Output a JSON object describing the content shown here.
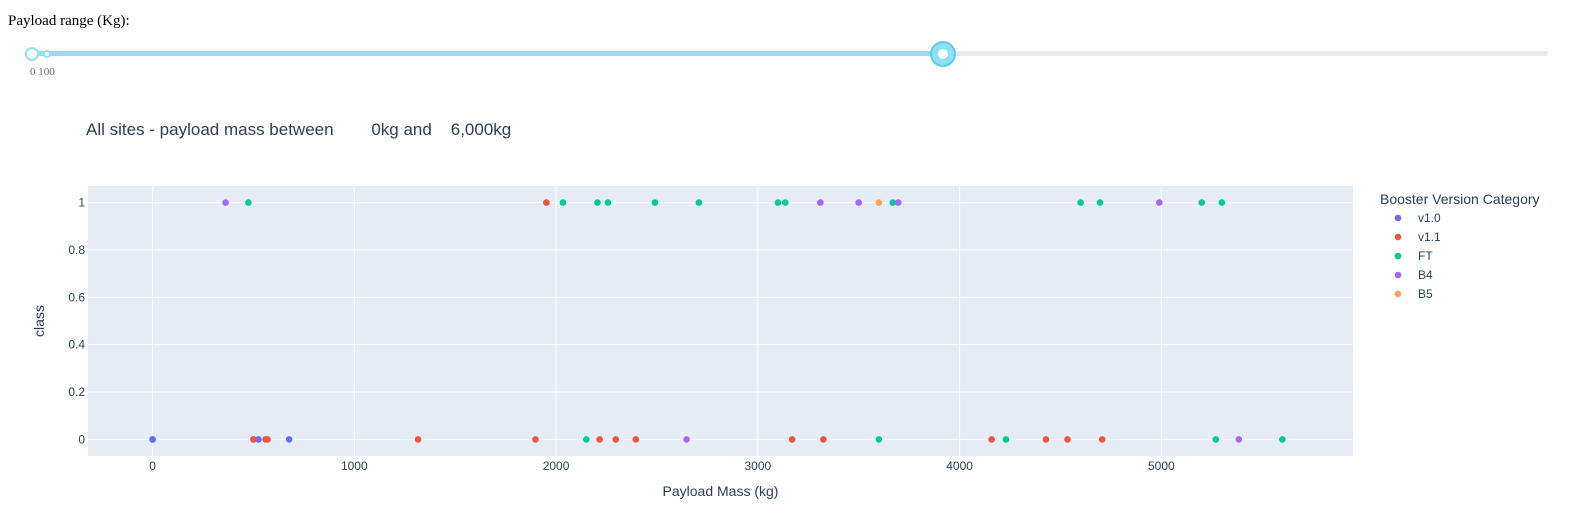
{
  "slider": {
    "label": "Payload range (Kg):",
    "marks_text": "0 100",
    "min": 0,
    "max": 10000,
    "value_low": 0,
    "value_high": 6000
  },
  "title": "All sites - payload mass between        0kg and    6,000kg",
  "chart_data": {
    "type": "scatter",
    "xlabel": "Payload Mass (kg)",
    "ylabel": "class",
    "xlim": [
      -320,
      5950
    ],
    "ylim": [
      -0.07,
      1.07
    ],
    "xticks": [
      0,
      1000,
      2000,
      3000,
      4000,
      5000
    ],
    "yticks": [
      0,
      0.2,
      0.4,
      0.6,
      0.8,
      1
    ],
    "ytick_labels": [
      "0",
      "0.2",
      "0.4",
      "0.6",
      "0.8",
      "1"
    ],
    "grid": true,
    "legend_title": "Booster Version Category",
    "legend_position": "right",
    "series": [
      {
        "name": "v1.0",
        "color": "#636efa",
        "points": [
          [
            0,
            0
          ],
          [
            0,
            0
          ],
          [
            525,
            0
          ],
          [
            677,
            0
          ],
          [
            500,
            0
          ]
        ]
      },
      {
        "name": "v1.1",
        "color": "#ef553b",
        "points": [
          [
            500,
            0
          ],
          [
            570,
            0
          ],
          [
            560,
            0
          ],
          [
            1316,
            0
          ],
          [
            1898,
            0
          ],
          [
            1952,
            1
          ],
          [
            2216,
            0
          ],
          [
            2296,
            0
          ],
          [
            2395,
            0
          ],
          [
            3170,
            0
          ],
          [
            3325,
            0
          ],
          [
            4159,
            0
          ],
          [
            4428,
            0
          ],
          [
            4535,
            0
          ],
          [
            4707,
            0
          ]
        ]
      },
      {
        "name": "FT",
        "color": "#00cc96",
        "points": [
          [
            475,
            1
          ],
          [
            2034,
            1
          ],
          [
            2205,
            1
          ],
          [
            2257,
            1
          ],
          [
            2490,
            1
          ],
          [
            2708,
            1
          ],
          [
            3100,
            1
          ],
          [
            3136,
            1
          ],
          [
            3669,
            1
          ],
          [
            4600,
            1
          ],
          [
            4696,
            1
          ],
          [
            5200,
            1
          ],
          [
            5300,
            1
          ],
          [
            2150,
            0
          ],
          [
            3600,
            0
          ],
          [
            4230,
            0
          ],
          [
            5270,
            0
          ],
          [
            5600,
            0
          ]
        ]
      },
      {
        "name": "B4",
        "color": "#ab63fa",
        "points": [
          [
            362,
            1
          ],
          [
            3310,
            1
          ],
          [
            3500,
            1
          ],
          [
            3696,
            1
          ],
          [
            4990,
            1
          ],
          [
            2647,
            0
          ],
          [
            5384,
            0
          ]
        ]
      },
      {
        "name": "B5",
        "color": "#ffa15a",
        "points": [
          [
            3600,
            1
          ]
        ]
      }
    ]
  }
}
